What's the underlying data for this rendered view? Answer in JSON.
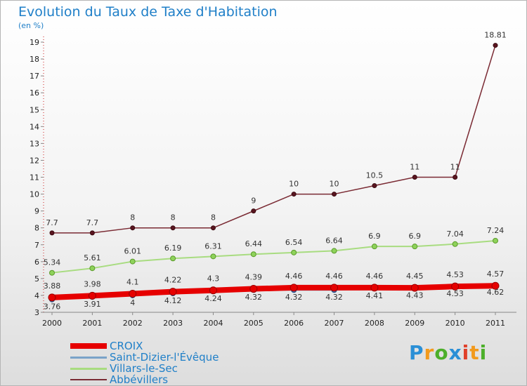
{
  "chart_data": {
    "type": "line",
    "title": "Evolution du Taux de Taxe d'Habitation",
    "unit_label": "(en %)",
    "x": [
      "2000",
      "2001",
      "2002",
      "2003",
      "2004",
      "2005",
      "2006",
      "2007",
      "2008",
      "2009",
      "2010",
      "2011"
    ],
    "ylim": [
      3,
      19
    ],
    "yticks": [
      3,
      4,
      5,
      6,
      7,
      8,
      9,
      10,
      11,
      12,
      13,
      14,
      15,
      16,
      17,
      18,
      19
    ],
    "grid": false,
    "legend_position": "bottom-left",
    "series": [
      {
        "name": "CROIX",
        "color": "#e60000",
        "values": [
          3.88,
          3.98,
          4.1,
          4.22,
          4.3,
          4.39,
          4.46,
          4.46,
          4.46,
          4.45,
          4.53,
          4.57
        ],
        "labels": [
          "3.88",
          "3.98",
          "4.1",
          "4.22",
          "4.3",
          "4.39",
          "4.46",
          "4.46",
          "4.46",
          "4.45",
          "4.53",
          "4.57"
        ]
      },
      {
        "name": "Saint-Dizier-l'Évêque",
        "color": "#7aa3c8",
        "values": [
          3.76,
          3.91,
          4,
          4.12,
          4.24,
          4.32,
          4.32,
          4.32,
          4.41,
          4.43,
          4.53,
          4.62
        ],
        "labels": [
          "3.76",
          "3.91",
          "4",
          "4.12",
          "4.24",
          "4.32",
          "4.32",
          "4.32",
          "4.41",
          "4.43",
          "4.53",
          "4.62"
        ]
      },
      {
        "name": "Villars-le-Sec",
        "color": "#a8dc80",
        "values": [
          5.34,
          5.61,
          6.01,
          6.19,
          6.31,
          6.44,
          6.54,
          6.64,
          6.9,
          6.9,
          7.04,
          7.24
        ],
        "labels": [
          "5.34",
          "5.61",
          "6.01",
          "6.19",
          "6.31",
          "6.44",
          "6.54",
          "6.64",
          "6.9",
          "6.9",
          "7.04",
          "7.24"
        ]
      },
      {
        "name": "Abbévillers",
        "color": "#7a2a33",
        "values": [
          7.7,
          7.7,
          8,
          8,
          8,
          9,
          10,
          10,
          10.5,
          11,
          11,
          18.81
        ],
        "labels": [
          "7.7",
          "7.7",
          "8",
          "8",
          "8",
          "9",
          "10",
          "10",
          "10.5",
          "11",
          "11",
          "18.81"
        ]
      }
    ]
  },
  "brand": {
    "letters": [
      "P",
      "r",
      "o",
      "x",
      "i",
      "t",
      "i"
    ],
    "colors": [
      "#2a8fd6",
      "#f29a1c",
      "#4caf2a",
      "#2a8fd6",
      "#e0402a",
      "#f29a1c",
      "#4caf2a"
    ]
  }
}
